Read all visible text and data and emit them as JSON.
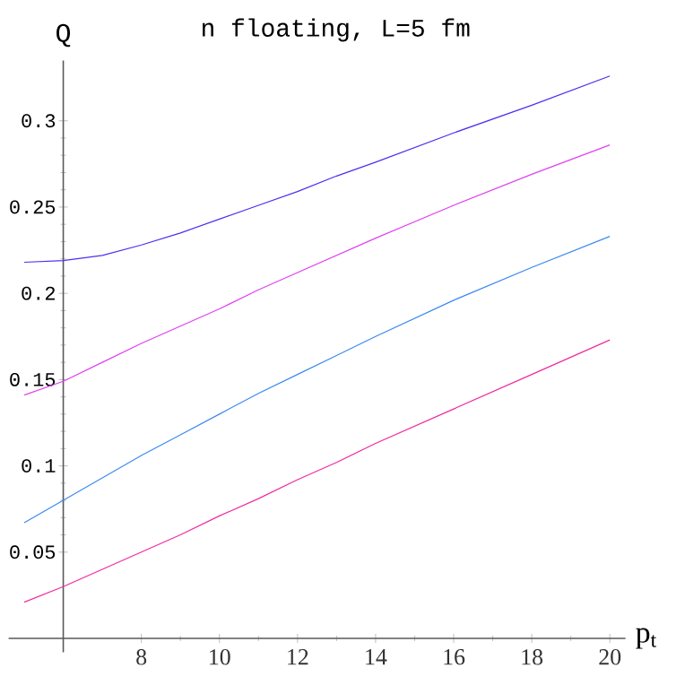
{
  "chart_data": {
    "type": "line",
    "title": "n floating, L=5 fm",
    "xlabel": "p$_{t}$",
    "ylabel": "Q",
    "x": [
      5,
      6,
      7,
      8,
      9,
      10,
      11,
      12,
      13,
      14,
      16,
      18,
      20
    ],
    "series": [
      {
        "color": "#4a30f0",
        "values": [
          0.218,
          0.219,
          0.222,
          0.228,
          0.235,
          0.243,
          0.251,
          0.259,
          0.268,
          0.276,
          0.293,
          0.309,
          0.326
        ]
      },
      {
        "color": "#e040f0",
        "values": [
          0.141,
          0.149,
          0.16,
          0.171,
          0.181,
          0.191,
          0.202,
          0.212,
          0.222,
          0.232,
          0.251,
          0.269,
          0.286
        ]
      },
      {
        "color": "#3a8af0",
        "values": [
          0.067,
          0.08,
          0.093,
          0.106,
          0.118,
          0.13,
          0.142,
          0.153,
          0.164,
          0.175,
          0.196,
          0.215,
          0.233
        ]
      },
      {
        "color": "#f02aa0",
        "values": [
          0.021,
          0.03,
          0.04,
          0.05,
          0.06,
          0.071,
          0.081,
          0.092,
          0.102,
          0.113,
          0.133,
          0.153,
          0.173
        ]
      }
    ],
    "xlim": [
      4.6,
      20.4
    ],
    "ylim": [
      -0.008,
      0.335
    ],
    "xticks": [
      8,
      10,
      12,
      14,
      16,
      18,
      20
    ],
    "yticks": [
      0.05,
      0.1,
      0.15,
      0.2,
      0.25,
      0.3
    ],
    "grid": false
  }
}
